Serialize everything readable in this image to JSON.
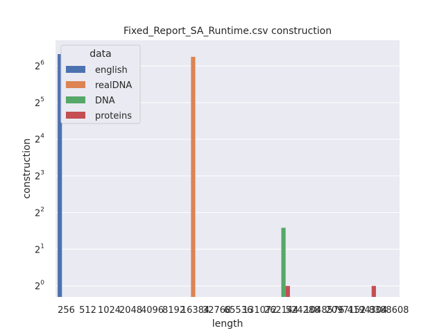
{
  "chart_data": {
    "type": "bar",
    "title": "Fixed_Report_SA_Runtime.csv construction",
    "xlabel": "length",
    "ylabel": "construction",
    "yscale": "log2",
    "ylim_exp": [
      -0.3,
      6.7
    ],
    "ytick_exponents": [
      0,
      1,
      2,
      3,
      4,
      5,
      6
    ],
    "ytick_base": "2",
    "grid": true,
    "legend_title": "data",
    "legend_position": "top-left",
    "categories": [
      "256",
      "512",
      "1024",
      "2048",
      "4096",
      "8192",
      "16384",
      "32768",
      "65536",
      "131072",
      "262144",
      "524288",
      "1048576",
      "2097152",
      "4194304",
      "8388608"
    ],
    "series": [
      {
        "name": "english",
        "color": "#4c72b0",
        "values": [
          80,
          null,
          null,
          null,
          null,
          null,
          null,
          null,
          null,
          null,
          null,
          null,
          null,
          null,
          null,
          null
        ]
      },
      {
        "name": "realDNA",
        "color": "#dd8452",
        "values": [
          null,
          null,
          null,
          null,
          null,
          null,
          76,
          null,
          null,
          null,
          null,
          null,
          null,
          null,
          null,
          null
        ]
      },
      {
        "name": "DNA",
        "color": "#55a868",
        "values": [
          null,
          null,
          null,
          null,
          null,
          null,
          null,
          null,
          null,
          null,
          3,
          null,
          null,
          null,
          null,
          null
        ]
      },
      {
        "name": "proteins",
        "color": "#c44e52",
        "values": [
          null,
          null,
          null,
          null,
          null,
          null,
          null,
          null,
          null,
          null,
          1,
          null,
          null,
          null,
          1,
          null
        ]
      }
    ]
  }
}
